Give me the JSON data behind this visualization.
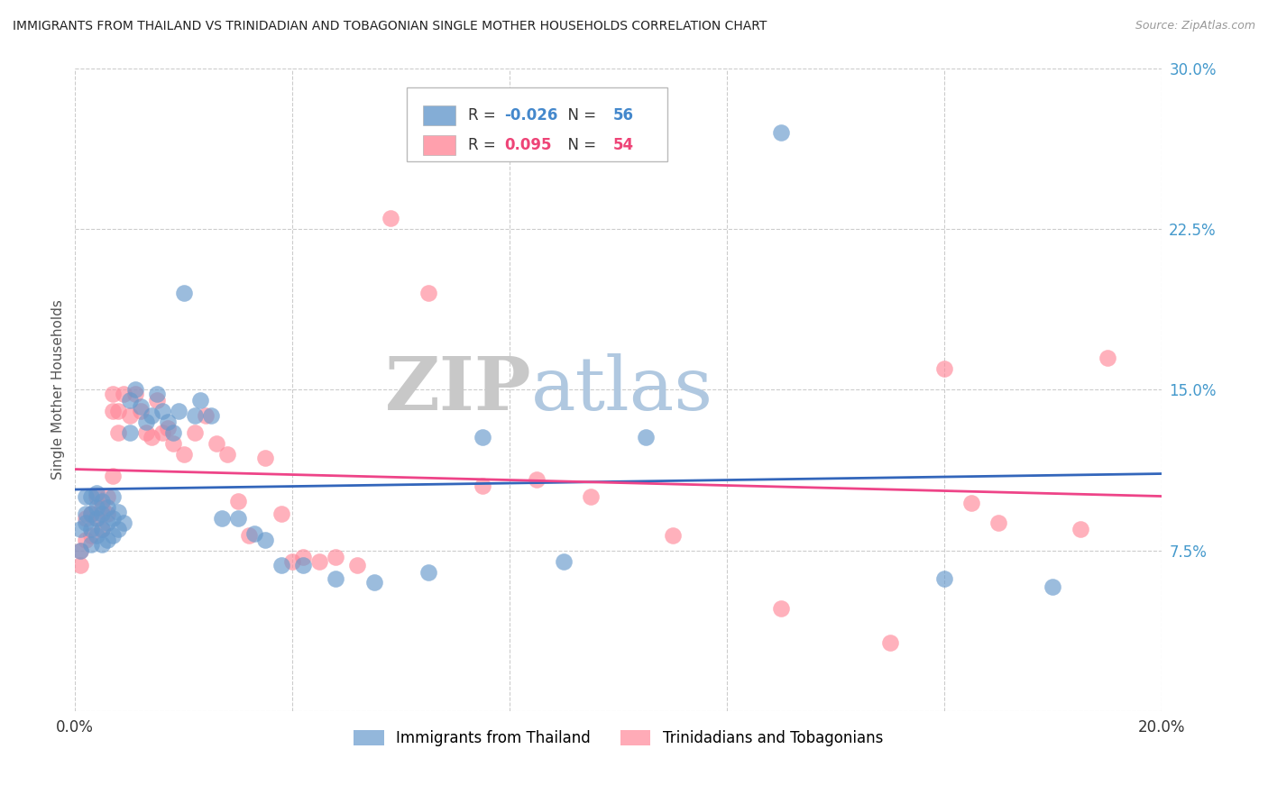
{
  "title": "IMMIGRANTS FROM THAILAND VS TRINIDADIAN AND TOBAGONIAN SINGLE MOTHER HOUSEHOLDS CORRELATION CHART",
  "source": "Source: ZipAtlas.com",
  "ylabel": "Single Mother Households",
  "xlim": [
    0.0,
    0.2
  ],
  "ylim": [
    0.0,
    0.3
  ],
  "yticks": [
    0.0,
    0.075,
    0.15,
    0.225,
    0.3
  ],
  "ytick_labels": [
    "",
    "7.5%",
    "15.0%",
    "22.5%",
    "30.0%"
  ],
  "xticks": [
    0.0,
    0.04,
    0.08,
    0.12,
    0.16,
    0.2
  ],
  "xtick_labels": [
    "0.0%",
    "",
    "",
    "",
    "",
    "20.0%"
  ],
  "blue_color": "#6699CC",
  "pink_color": "#FF8899",
  "blue_line_color": "#3366BB",
  "pink_line_color": "#EE4488",
  "blue_label": "Immigrants from Thailand",
  "pink_label": "Trinidadians and Tobagonians",
  "blue_R": "-0.026",
  "blue_N": "56",
  "pink_R": "0.095",
  "pink_N": "54",
  "watermark_zip": "ZIP",
  "watermark_atlas": "atlas",
  "background_color": "#ffffff",
  "grid_color": "#cccccc",
  "blue_scatter_x": [
    0.001,
    0.001,
    0.002,
    0.002,
    0.002,
    0.003,
    0.003,
    0.003,
    0.003,
    0.004,
    0.004,
    0.004,
    0.004,
    0.005,
    0.005,
    0.005,
    0.005,
    0.006,
    0.006,
    0.006,
    0.007,
    0.007,
    0.007,
    0.008,
    0.008,
    0.009,
    0.01,
    0.01,
    0.011,
    0.012,
    0.013,
    0.014,
    0.015,
    0.016,
    0.017,
    0.018,
    0.019,
    0.02,
    0.022,
    0.023,
    0.025,
    0.027,
    0.03,
    0.033,
    0.035,
    0.038,
    0.042,
    0.048,
    0.055,
    0.065,
    0.075,
    0.09,
    0.105,
    0.13,
    0.16,
    0.18
  ],
  "blue_scatter_y": [
    0.075,
    0.085,
    0.088,
    0.092,
    0.1,
    0.078,
    0.085,
    0.092,
    0.1,
    0.082,
    0.09,
    0.095,
    0.102,
    0.078,
    0.085,
    0.092,
    0.098,
    0.08,
    0.088,
    0.095,
    0.082,
    0.09,
    0.1,
    0.085,
    0.093,
    0.088,
    0.13,
    0.145,
    0.15,
    0.142,
    0.135,
    0.138,
    0.148,
    0.14,
    0.135,
    0.13,
    0.14,
    0.195,
    0.138,
    0.145,
    0.138,
    0.09,
    0.09,
    0.083,
    0.08,
    0.068,
    0.068,
    0.062,
    0.06,
    0.065,
    0.128,
    0.07,
    0.128,
    0.27,
    0.062,
    0.058
  ],
  "pink_scatter_x": [
    0.001,
    0.001,
    0.002,
    0.002,
    0.003,
    0.003,
    0.004,
    0.004,
    0.005,
    0.005,
    0.006,
    0.006,
    0.007,
    0.007,
    0.007,
    0.008,
    0.008,
    0.009,
    0.01,
    0.011,
    0.012,
    0.013,
    0.014,
    0.015,
    0.016,
    0.017,
    0.018,
    0.02,
    0.022,
    0.024,
    0.026,
    0.028,
    0.03,
    0.032,
    0.035,
    0.038,
    0.04,
    0.042,
    0.045,
    0.048,
    0.052,
    0.058,
    0.065,
    0.075,
    0.085,
    0.095,
    0.11,
    0.13,
    0.15,
    0.16,
    0.165,
    0.17,
    0.185,
    0.19
  ],
  "pink_scatter_y": [
    0.068,
    0.075,
    0.08,
    0.09,
    0.082,
    0.092,
    0.09,
    0.1,
    0.085,
    0.095,
    0.092,
    0.1,
    0.11,
    0.14,
    0.148,
    0.13,
    0.14,
    0.148,
    0.138,
    0.148,
    0.14,
    0.13,
    0.128,
    0.145,
    0.13,
    0.132,
    0.125,
    0.12,
    0.13,
    0.138,
    0.125,
    0.12,
    0.098,
    0.082,
    0.118,
    0.092,
    0.07,
    0.072,
    0.07,
    0.072,
    0.068,
    0.23,
    0.195,
    0.105,
    0.108,
    0.1,
    0.082,
    0.048,
    0.032,
    0.16,
    0.097,
    0.088,
    0.085,
    0.165
  ]
}
